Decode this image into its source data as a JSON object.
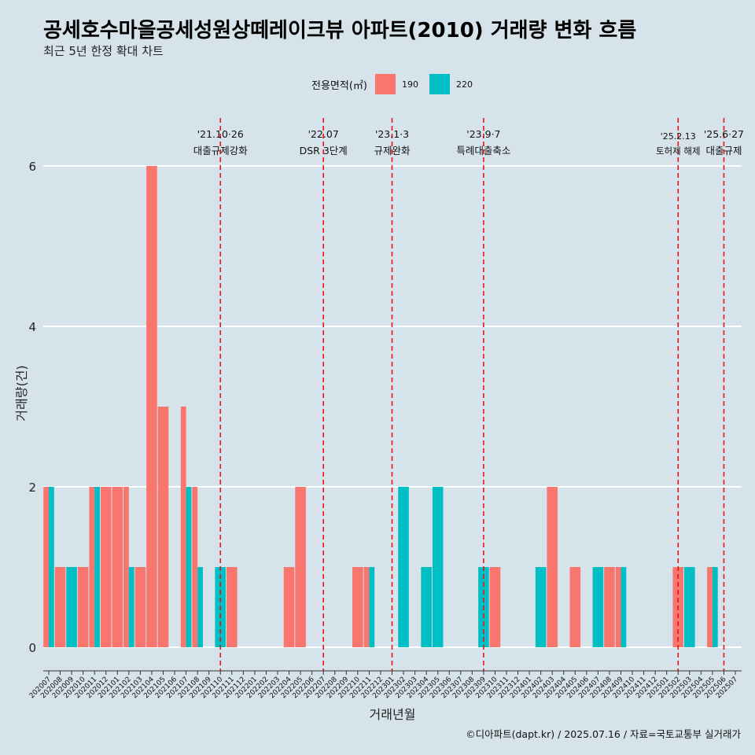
{
  "title": "공세호수마을공세성원상떼레이크뷰 아파트(2010) 거래량 변화 흐름",
  "subtitle": "최근 5년 한정 확대 차트",
  "caption": "©디아파트(dapt.kr) / 2025.07.16 / 자료=국토교통부 실거래가",
  "chart_data": {
    "type": "bar",
    "xlabel": "거래년월",
    "ylabel": "거래량(건)",
    "ylim": [
      0,
      6
    ],
    "yticks": [
      0,
      2,
      4,
      6
    ],
    "grid": true,
    "legend": {
      "title": "전용면적(㎡)",
      "placement": "top"
    },
    "series": [
      {
        "name": "190",
        "color": "#F8766D"
      },
      {
        "name": "220",
        "color": "#00BFC4"
      }
    ],
    "categories": [
      "202007",
      "202008",
      "202009",
      "202010",
      "202011",
      "202012",
      "202101",
      "202102",
      "202103",
      "202104",
      "202105",
      "202106",
      "202107",
      "202108",
      "202109",
      "202110",
      "202111",
      "202112",
      "202201",
      "202202",
      "202203",
      "202204",
      "202205",
      "202206",
      "202207",
      "202208",
      "202209",
      "202210",
      "202211",
      "202212",
      "202301",
      "202302",
      "202303",
      "202304",
      "202305",
      "202306",
      "202307",
      "202308",
      "202309",
      "202310",
      "202311",
      "202312",
      "202401",
      "202402",
      "202403",
      "202404",
      "202405",
      "202406",
      "202407",
      "202408",
      "202409",
      "202410",
      "202411",
      "202412",
      "202501",
      "202502",
      "202503",
      "202504",
      "202505",
      "202506",
      "202507"
    ],
    "bars": [
      {
        "month": "202007",
        "s190": 2,
        "s220": 2
      },
      {
        "month": "202008",
        "s190": 1,
        "s220": 0
      },
      {
        "month": "202009",
        "s190": 0,
        "s220": 1
      },
      {
        "month": "202010",
        "s190": 1,
        "s220": 0
      },
      {
        "month": "202011",
        "s190": 2,
        "s220": 2
      },
      {
        "month": "202012",
        "s190": 2,
        "s220": 0
      },
      {
        "month": "202101",
        "s190": 2,
        "s220": 0
      },
      {
        "month": "202102",
        "s190": 2,
        "s220": 1
      },
      {
        "month": "202103",
        "s190": 1,
        "s220": 0
      },
      {
        "month": "202104",
        "s190": 6,
        "s220": 0
      },
      {
        "month": "202105",
        "s190": 3,
        "s220": 0
      },
      {
        "month": "202107",
        "s190": 3,
        "s220": 2
      },
      {
        "month": "202108",
        "s190": 2,
        "s220": 1
      },
      {
        "month": "202110",
        "s190": 0,
        "s220": 1
      },
      {
        "month": "202111",
        "s190": 1,
        "s220": 0
      },
      {
        "month": "202204",
        "s190": 1,
        "s220": 0
      },
      {
        "month": "202205",
        "s190": 2,
        "s220": 0
      },
      {
        "month": "202210",
        "s190": 1,
        "s220": 0
      },
      {
        "month": "202211",
        "s190": 1,
        "s220": 1
      },
      {
        "month": "202302",
        "s190": 0,
        "s220": 2
      },
      {
        "month": "202304",
        "s190": 0,
        "s220": 1
      },
      {
        "month": "202305",
        "s190": 0,
        "s220": 2
      },
      {
        "month": "202309",
        "s190": 0,
        "s220": 1
      },
      {
        "month": "202310",
        "s190": 1,
        "s220": 0
      },
      {
        "month": "202402",
        "s190": 0,
        "s220": 1
      },
      {
        "month": "202403",
        "s190": 2,
        "s220": 0
      },
      {
        "month": "202405",
        "s190": 1,
        "s220": 0
      },
      {
        "month": "202407",
        "s190": 0,
        "s220": 1
      },
      {
        "month": "202408",
        "s190": 1,
        "s220": 0
      },
      {
        "month": "202409",
        "s190": 1,
        "s220": 1
      },
      {
        "month": "202502",
        "s190": 1,
        "s220": 0
      },
      {
        "month": "202503",
        "s190": 0,
        "s220": 1
      },
      {
        "month": "202505",
        "s190": 1,
        "s220": 1
      }
    ],
    "annotations": [
      {
        "month": "202110",
        "date": "'21.10·26",
        "label": "대출규제강화"
      },
      {
        "month": "202207",
        "date": "'22.07",
        "label": "DSR 3단계"
      },
      {
        "month": "202301",
        "date": "'23.1·3",
        "label": "규제완화"
      },
      {
        "month": "202309",
        "date": "'23.9·7",
        "label": "특례대출축소"
      },
      {
        "month": "202502",
        "date": "'25.2.13",
        "label": "토허제 해제"
      },
      {
        "month": "202506",
        "date": "'25.6·27",
        "label": "대출규제"
      }
    ]
  }
}
